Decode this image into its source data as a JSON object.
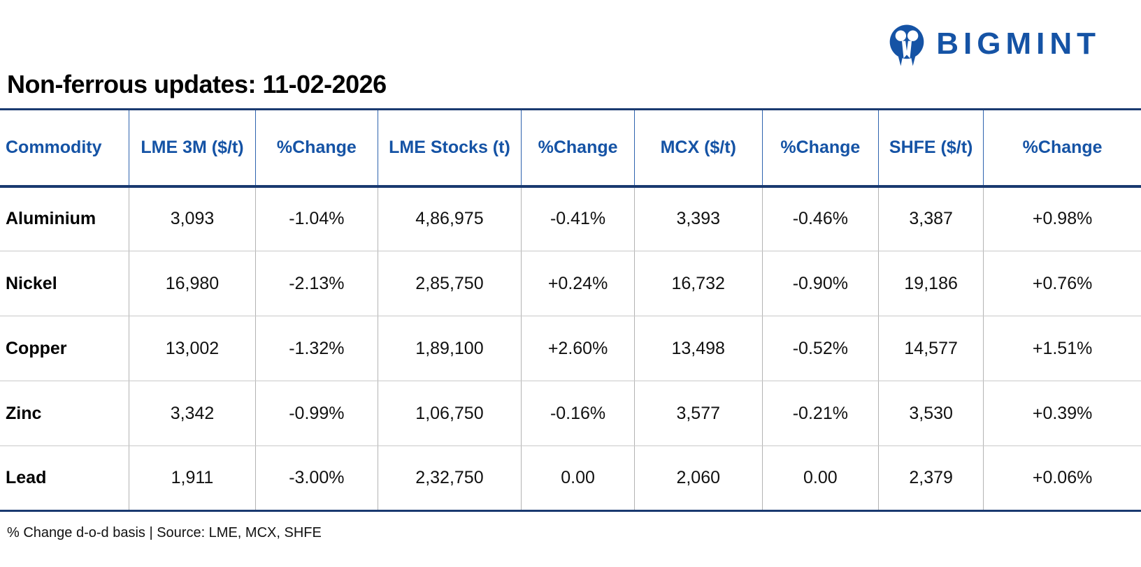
{
  "brand": {
    "wordmark": "BIGMINT",
    "logo_icon": "bigmint-owl-monogram-icon"
  },
  "colors": {
    "brand_blue": "#1553a5",
    "line_navy": "#1a3a70",
    "header_separator_blue": "#2e63ae",
    "body_separator_gray": "#b3b3b3",
    "row_separator_gray": "#c9c9c9",
    "positive_green": "#00a859",
    "negative_red": "#ee1111"
  },
  "chart_data": {
    "type": "table",
    "title": "Non-ferrous updates: 11-02-2026",
    "columns": [
      "Commodity",
      "LME 3M ($/t)",
      "%Change",
      "LME Stocks (t)",
      "%Change",
      "MCX ($/t)",
      "%Change",
      "SHFE ($/t)",
      "%Change"
    ],
    "col_widths_pct": [
      11.3,
      11.1,
      10.7,
      12.6,
      9.9,
      11.2,
      10.2,
      9.2,
      13.8
    ],
    "rows": [
      [
        "Aluminium",
        "3,093",
        "-1.04%",
        "4,86,975",
        "-0.41%",
        "3,393",
        "-0.46%",
        "3,387",
        "+0.98%"
      ],
      [
        "Nickel",
        "16,980",
        "-2.13%",
        "2,85,750",
        "+0.24%",
        "16,732",
        "-0.90%",
        "19,186",
        "+0.76%"
      ],
      [
        "Copper",
        "13,002",
        "-1.32%",
        "1,89,100",
        "+2.60%",
        "13,498",
        "-0.52%",
        "14,577",
        "+1.51%"
      ],
      [
        "Zinc",
        "3,342",
        "-0.99%",
        "1,06,750",
        "-0.16%",
        "3,577",
        "-0.21%",
        "3,530",
        "+0.39%"
      ],
      [
        "Lead",
        "1,911",
        "-3.00%",
        "2,32,750",
        "0.00",
        "2,060",
        "0.00",
        "2,379",
        "+0.06%"
      ]
    ],
    "footnote": "% Change d-o-d basis | Source: LME, MCX, SHFE"
  }
}
